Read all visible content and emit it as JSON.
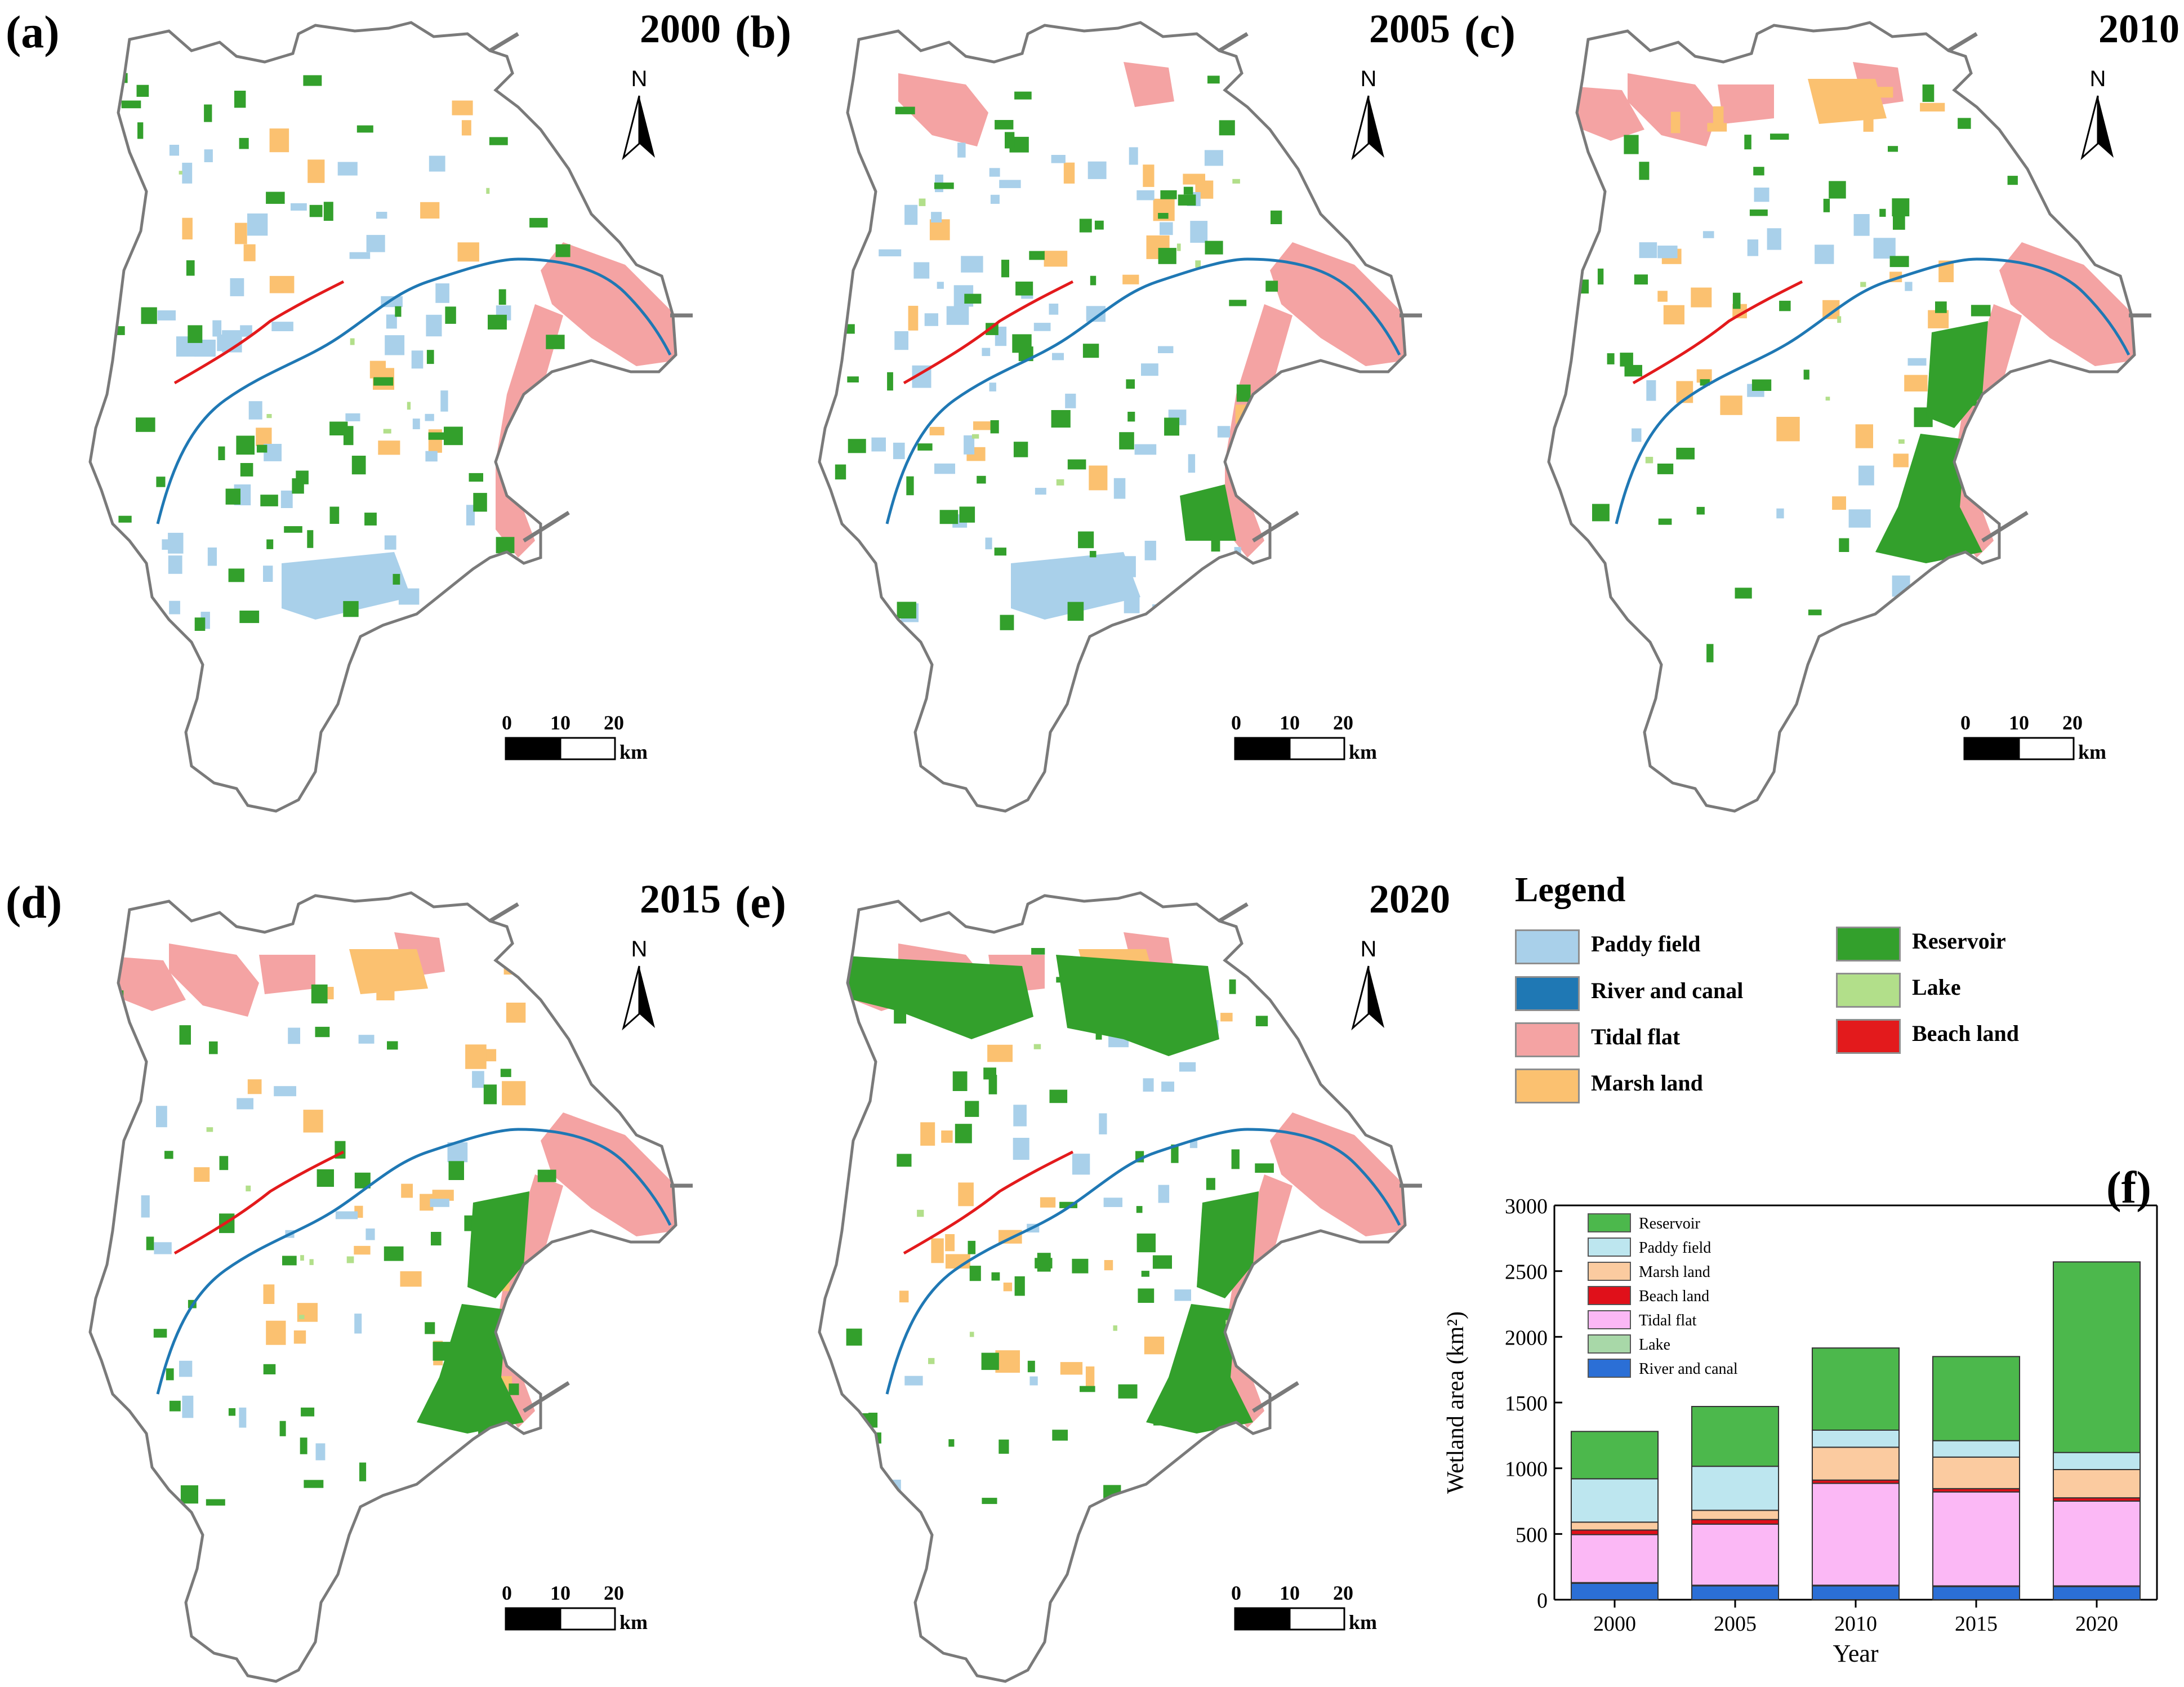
{
  "panels": [
    {
      "label": "(a)",
      "year": "2000"
    },
    {
      "label": "(b)",
      "year": "2005"
    },
    {
      "label": "(c)",
      "year": "2010"
    },
    {
      "label": "(d)",
      "year": "2015"
    },
    {
      "label": "(e)",
      "year": "2020"
    }
  ],
  "north_label": "N",
  "scale": {
    "ticks": [
      "0",
      "10",
      "20"
    ],
    "unit": "km"
  },
  "legend": {
    "title": "Legend",
    "items": [
      {
        "label": "Paddy field",
        "color": "#a9d0ea"
      },
      {
        "label": "River and canal",
        "color": "#1f78b4"
      },
      {
        "label": "Tidal flat",
        "color": "#f4a3a3"
      },
      {
        "label": "Marsh land",
        "color": "#fbc170"
      },
      {
        "label": "Reservoir",
        "color": "#33a02c"
      },
      {
        "label": "Lake",
        "color": "#b2df8a"
      },
      {
        "label": "Beach land",
        "color": "#e31a1c"
      }
    ]
  },
  "colors": {
    "boundary": "#7a7a7a",
    "paddy": "#a9d0ea",
    "river": "#1f78b4",
    "tidal": "#f4a3a3",
    "marsh": "#fbc170",
    "reservoir": "#33a02c",
    "lake": "#b2df8a",
    "beach": "#e31a1c"
  },
  "chart_data": {
    "type": "bar",
    "stacked": true,
    "panel_label": "(f)",
    "xlabel": "Year",
    "ylabel": "Wetland area (km²)",
    "ylim": [
      0,
      3000
    ],
    "yticks": [
      0,
      500,
      1000,
      1500,
      2000,
      2500,
      3000
    ],
    "categories": [
      "2000",
      "2005",
      "2010",
      "2015",
      "2020"
    ],
    "legend_position": "top-left",
    "series": [
      {
        "name": "River and canal",
        "color": "#2b6fd6",
        "values": [
          125,
          105,
          105,
          100,
          100
        ]
      },
      {
        "name": "Lake",
        "color": "#a8d8a8",
        "values": [
          5,
          5,
          5,
          5,
          5
        ]
      },
      {
        "name": "Tidal flat",
        "color": "#fbb8f5",
        "values": [
          365,
          465,
          775,
          715,
          645
        ]
      },
      {
        "name": "Beach land",
        "color": "#e0101a",
        "values": [
          35,
          35,
          25,
          25,
          25
        ]
      },
      {
        "name": "Marsh land",
        "color": "#fbcba0",
        "values": [
          60,
          70,
          250,
          240,
          215
        ]
      },
      {
        "name": "Paddy field",
        "color": "#bde6ef",
        "values": [
          330,
          335,
          130,
          125,
          130
        ]
      },
      {
        "name": "Reservoir",
        "color": "#4cb84c",
        "values": [
          360,
          455,
          625,
          640,
          1450
        ]
      }
    ]
  }
}
